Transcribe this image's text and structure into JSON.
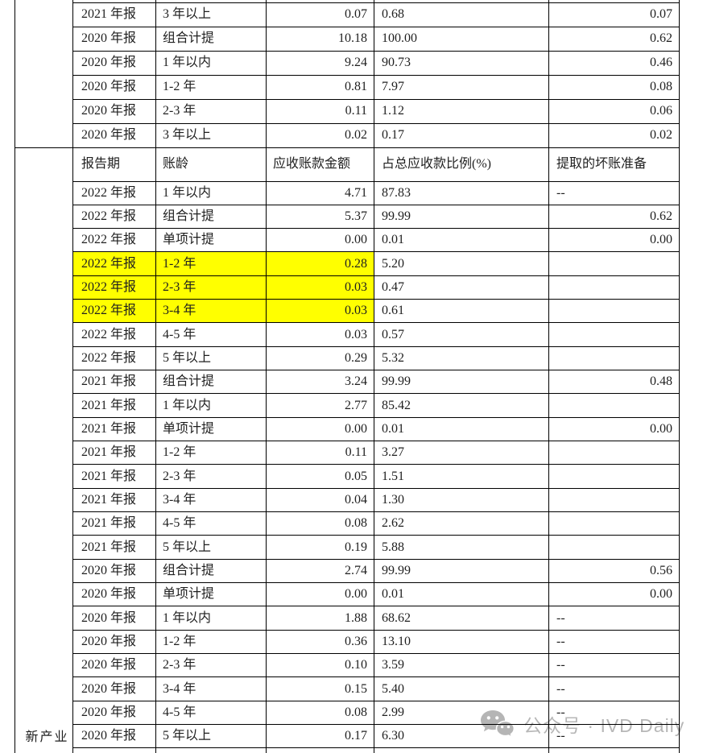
{
  "table": {
    "company": "新产业",
    "company_top": "",
    "header": {
      "period": "报告期",
      "aging": "账龄",
      "amount": "应收账款金额",
      "pct": "占总应收款比例(%)",
      "provision": "提取的坏账准备"
    },
    "section1_rows": [
      {
        "period": "2021 年报",
        "aging": "3 年以上",
        "amount": "0.07",
        "pct": "0.68",
        "provision": "0.07"
      },
      {
        "period": "2020 年报",
        "aging": "组合计提",
        "amount": "10.18",
        "pct": "100.00",
        "provision": "0.62"
      },
      {
        "period": "2020 年报",
        "aging": "1 年以内",
        "amount": "9.24",
        "pct": "90.73",
        "provision": "0.46"
      },
      {
        "period": "2020 年报",
        "aging": "1-2 年",
        "amount": "0.81",
        "pct": "7.97",
        "provision": "0.08"
      },
      {
        "period": "2020 年报",
        "aging": "2-3 年",
        "amount": "0.11",
        "pct": "1.12",
        "provision": "0.06"
      },
      {
        "period": "2020 年报",
        "aging": "3 年以上",
        "amount": "0.02",
        "pct": "0.17",
        "provision": "0.02"
      }
    ],
    "section2_rows": [
      {
        "period": "2022 年报",
        "aging": "1 年以内",
        "amount": "4.71",
        "pct": "87.83",
        "provision": "--",
        "highlight": false
      },
      {
        "period": "2022 年报",
        "aging": "组合计提",
        "amount": "5.37",
        "pct": "99.99",
        "provision": "0.62",
        "highlight": false
      },
      {
        "period": "2022 年报",
        "aging": "单项计提",
        "amount": "0.00",
        "pct": "0.01",
        "provision": "0.00",
        "highlight": false
      },
      {
        "period": "2022 年报",
        "aging": "1-2 年",
        "amount": "0.28",
        "pct": "5.20",
        "provision": "",
        "highlight": true
      },
      {
        "period": "2022 年报",
        "aging": "2-3 年",
        "amount": "0.03",
        "pct": "0.47",
        "provision": "",
        "highlight": true
      },
      {
        "period": "2022 年报",
        "aging": "3-4 年",
        "amount": "0.03",
        "pct": "0.61",
        "provision": "",
        "highlight": true
      },
      {
        "period": "2022 年报",
        "aging": "4-5 年",
        "amount": "0.03",
        "pct": "0.57",
        "provision": "",
        "highlight": false
      },
      {
        "period": "2022 年报",
        "aging": "5 年以上",
        "amount": "0.29",
        "pct": "5.32",
        "provision": "",
        "highlight": false
      },
      {
        "period": "2021 年报",
        "aging": "组合计提",
        "amount": "3.24",
        "pct": "99.99",
        "provision": "0.48",
        "highlight": false
      },
      {
        "period": "2021 年报",
        "aging": "1 年以内",
        "amount": "2.77",
        "pct": "85.42",
        "provision": "",
        "highlight": false
      },
      {
        "period": "2021 年报",
        "aging": "单项计提",
        "amount": "0.00",
        "pct": "0.01",
        "provision": "0.00",
        "highlight": false
      },
      {
        "period": "2021 年报",
        "aging": "1-2 年",
        "amount": "0.11",
        "pct": "3.27",
        "provision": "",
        "highlight": false
      },
      {
        "period": "2021 年报",
        "aging": "2-3 年",
        "amount": "0.05",
        "pct": "1.51",
        "provision": "",
        "highlight": false
      },
      {
        "period": "2021 年报",
        "aging": "3-4 年",
        "amount": "0.04",
        "pct": "1.30",
        "provision": "",
        "highlight": false
      },
      {
        "period": "2021 年报",
        "aging": "4-5 年",
        "amount": "0.08",
        "pct": "2.62",
        "provision": "",
        "highlight": false
      },
      {
        "period": "2021 年报",
        "aging": "5 年以上",
        "amount": "0.19",
        "pct": "5.88",
        "provision": "",
        "highlight": false
      },
      {
        "period": "2020 年报",
        "aging": "组合计提",
        "amount": "2.74",
        "pct": "99.99",
        "provision": "0.56",
        "highlight": false
      },
      {
        "period": "2020 年报",
        "aging": "单项计提",
        "amount": "0.00",
        "pct": "0.01",
        "provision": "0.00",
        "highlight": false
      },
      {
        "period": "2020 年报",
        "aging": "1 年以内",
        "amount": "1.88",
        "pct": "68.62",
        "provision": "--",
        "highlight": false
      },
      {
        "period": "2020 年报",
        "aging": "1-2 年",
        "amount": "0.36",
        "pct": "13.10",
        "provision": "--",
        "highlight": false
      },
      {
        "period": "2020 年报",
        "aging": "2-3 年",
        "amount": "0.10",
        "pct": "3.59",
        "provision": "--",
        "highlight": false
      },
      {
        "period": "2020 年报",
        "aging": "3-4 年",
        "amount": "0.15",
        "pct": "5.40",
        "provision": "--",
        "highlight": false
      },
      {
        "period": "2020 年报",
        "aging": "4-5 年",
        "amount": "0.08",
        "pct": "2.99",
        "provision": "--",
        "highlight": false
      },
      {
        "period": "2020 年报",
        "aging": "5 年以上",
        "amount": "0.17",
        "pct": "6.30",
        "provision": "--",
        "highlight": false
      }
    ]
  },
  "watermark": {
    "text": "公众号 · IVD Daily",
    "icon": "wechat-icon"
  },
  "colors": {
    "highlight": "#ffff00",
    "border": "#000000",
    "text": "#1f1f1f",
    "watermark": "#b7b7b7"
  }
}
